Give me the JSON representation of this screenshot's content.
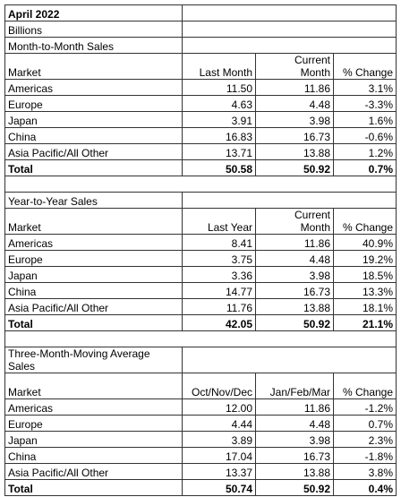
{
  "title": "April 2022",
  "unit": "Billions",
  "sections": [
    {
      "title": "Month-to-Month Sales",
      "header": [
        "Market",
        "Last Month",
        "Current Month",
        "% Change"
      ],
      "rows": [
        [
          "Americas",
          "11.50",
          "11.86",
          "3.1%"
        ],
        [
          "Europe",
          "4.63",
          "4.48",
          "-3.3%"
        ],
        [
          "Japan",
          "3.91",
          "3.98",
          "1.6%"
        ],
        [
          "China",
          "16.83",
          "16.73",
          "-0.6%"
        ],
        [
          "Asia Pacific/All Other",
          "13.71",
          "13.88",
          "1.2%"
        ]
      ],
      "total": [
        "Total",
        "50.58",
        "50.92",
        "0.7%"
      ]
    },
    {
      "title": "Year-to-Year Sales",
      "header": [
        "Market",
        "Last Year",
        "Current Month",
        "% Change"
      ],
      "rows": [
        [
          "Americas",
          "8.41",
          "11.86",
          "40.9%"
        ],
        [
          "Europe",
          "3.75",
          "4.48",
          "19.2%"
        ],
        [
          "Japan",
          "3.36",
          "3.98",
          "18.5%"
        ],
        [
          "China",
          "14.77",
          "16.73",
          "13.3%"
        ],
        [
          "Asia Pacific/All Other",
          "11.76",
          "13.88",
          "18.1%"
        ]
      ],
      "total": [
        "Total",
        "42.05",
        "50.92",
        "21.1%"
      ]
    },
    {
      "title": "Three-Month-Moving Average Sales",
      "header": [
        "Market",
        "Oct/Nov/Dec",
        "Jan/Feb/Mar",
        "% Change"
      ],
      "rows": [
        [
          "Americas",
          "12.00",
          "11.86",
          "-1.2%"
        ],
        [
          "Europe",
          "4.44",
          "4.48",
          "0.7%"
        ],
        [
          "Japan",
          "3.89",
          "3.98",
          "2.3%"
        ],
        [
          "China",
          "17.04",
          "16.73",
          "-1.8%"
        ],
        [
          "Asia Pacific/All Other",
          "13.37",
          "13.88",
          "3.8%"
        ]
      ],
      "total": [
        "Total",
        "50.74",
        "50.92",
        "0.4%"
      ]
    }
  ]
}
